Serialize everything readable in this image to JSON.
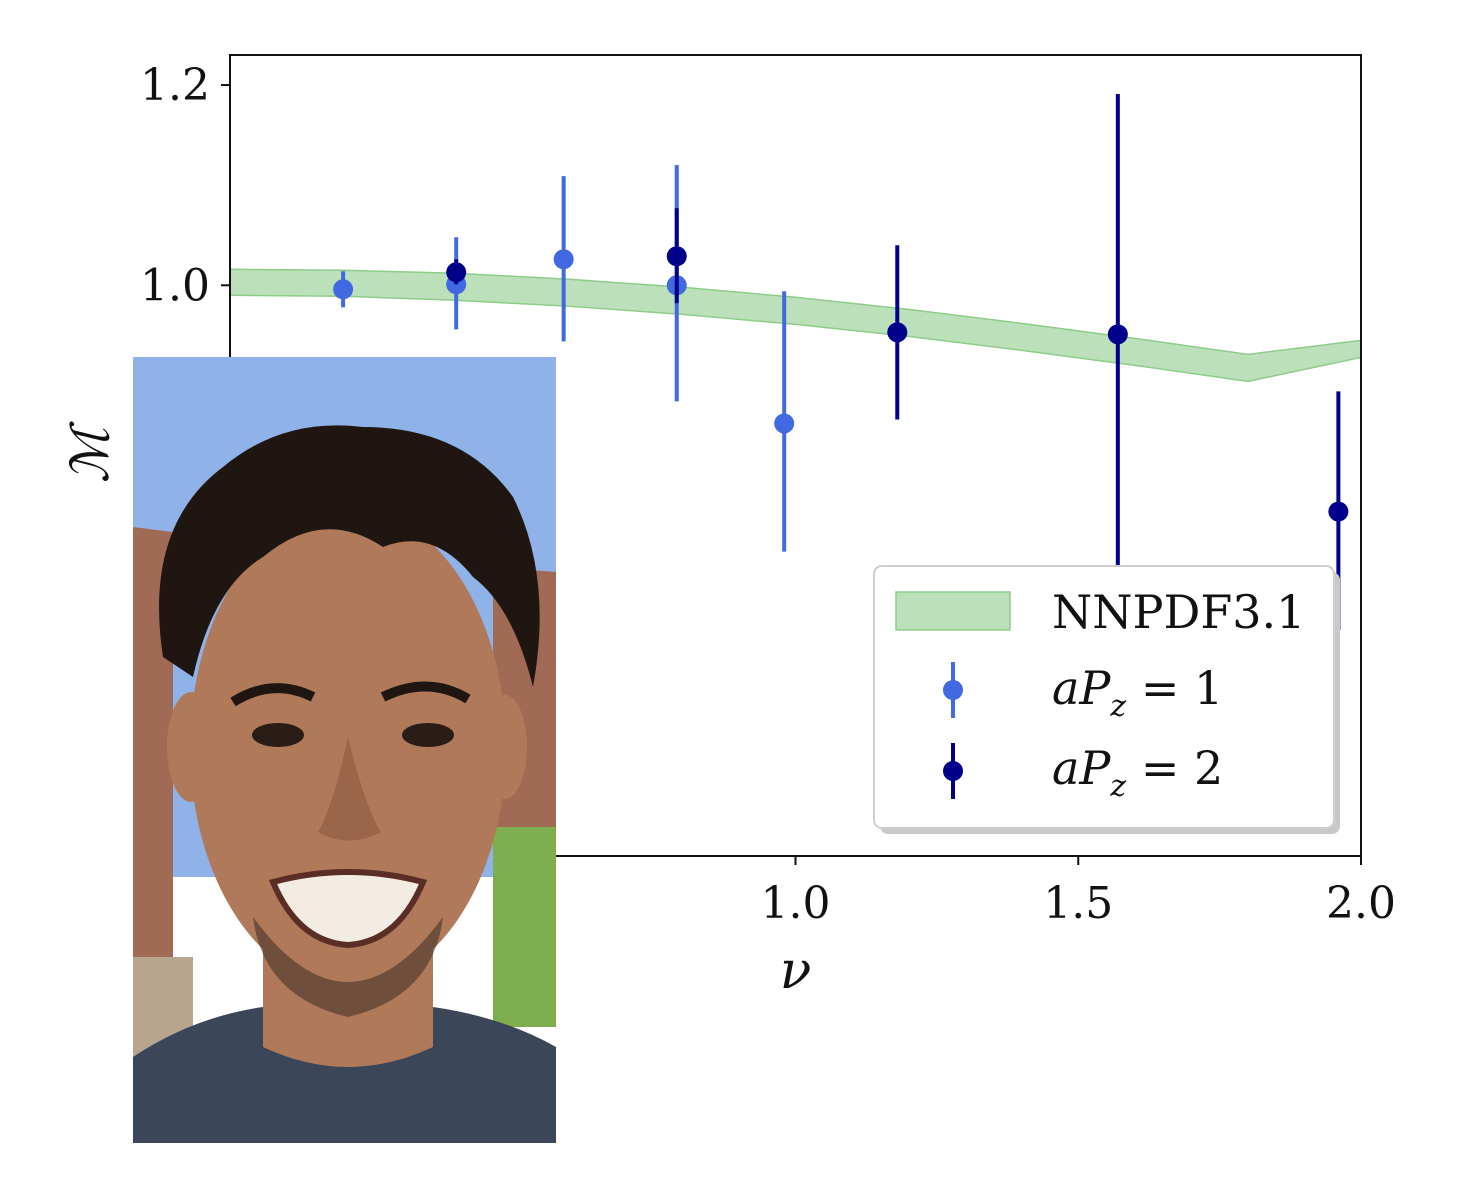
{
  "chart_data": {
    "type": "scatter",
    "xlabel": "ν",
    "ylabel": "ℳ",
    "xlim": [
      0.0,
      2.0
    ],
    "ylim": [
      0.43,
      1.23
    ],
    "xticks": [
      {
        "value": 1.0,
        "label": "1.0"
      },
      {
        "value": 1.5,
        "label": "1.5"
      },
      {
        "value": 2.0,
        "label": "2.0"
      }
    ],
    "yticks": [
      {
        "value": 1.0,
        "label": "1.0"
      },
      {
        "value": 1.2,
        "label": "1.2"
      }
    ],
    "band": {
      "name": "NNPDF3.1",
      "color": "#8fcc8a",
      "x": [
        0.0,
        0.2,
        0.4,
        0.6,
        0.8,
        1.0,
        1.2,
        1.4,
        1.6,
        1.8,
        2.0
      ],
      "lower": [
        0.99,
        0.989,
        0.985,
        0.979,
        0.971,
        0.961,
        0.949,
        0.935,
        0.92,
        0.904,
        0.928
      ],
      "upper": [
        1.016,
        1.015,
        1.012,
        1.006,
        0.998,
        0.988,
        0.976,
        0.962,
        0.947,
        0.931,
        0.945
      ]
    },
    "series": [
      {
        "name": "aP_z = 1",
        "legend_prefix": "aP",
        "legend_sub": "z",
        "legend_suffix": " = 1",
        "color": "#4169e1",
        "points": [
          {
            "x": 0.2,
            "y": 0.996,
            "err_lo": 0.018,
            "err_hi": 0.018
          },
          {
            "x": 0.4,
            "y": 1.001,
            "err_lo": 0.045,
            "err_hi": 0.047
          },
          {
            "x": 0.59,
            "y": 1.026,
            "err_lo": 0.082,
            "err_hi": 0.083
          },
          {
            "x": 0.79,
            "y": 1.0,
            "err_lo": 0.116,
            "err_hi": 0.12
          },
          {
            "x": 0.98,
            "y": 0.862,
            "err_lo": 0.128,
            "err_hi": 0.132
          }
        ]
      },
      {
        "name": "aP_z = 2",
        "legend_prefix": "aP",
        "legend_sub": "z",
        "legend_suffix": " = 2",
        "color": "#00008b",
        "points": [
          {
            "x": 0.4,
            "y": 1.013,
            "err_lo": 0.012,
            "err_hi": 0.013
          },
          {
            "x": 0.79,
            "y": 1.029,
            "err_lo": 0.047,
            "err_hi": 0.048
          },
          {
            "x": 1.18,
            "y": 0.953,
            "err_lo": 0.087,
            "err_hi": 0.087
          },
          {
            "x": 1.57,
            "y": 0.951,
            "err_lo": 0.237,
            "err_hi": 0.24
          },
          {
            "x": 1.96,
            "y": 0.774,
            "err_lo": 0.118,
            "err_hi": 0.12
          }
        ]
      }
    ],
    "legend_position": "lower-right",
    "grid": false
  },
  "inset_photo": {
    "colors": {
      "sky": "#8fb3e8",
      "wall": "#a06a55",
      "grass": "#7fae4e",
      "skin": "#b07a5a",
      "hair": "#1f1612",
      "shirt": "#3b4658"
    }
  }
}
